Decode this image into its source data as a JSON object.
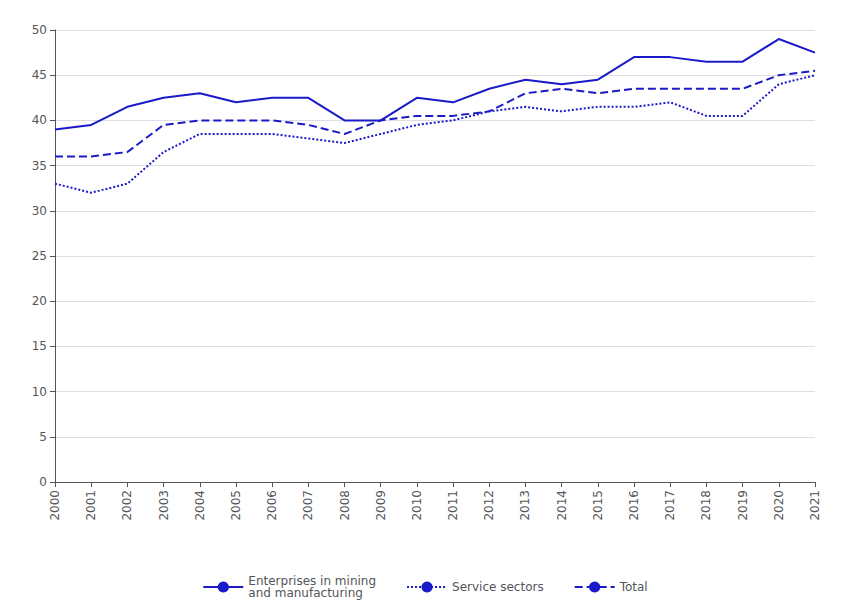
{
  "chart_data": {
    "type": "line",
    "x": [
      2000,
      2001,
      2002,
      2003,
      2004,
      2005,
      2006,
      2007,
      2008,
      2009,
      2010,
      2011,
      2012,
      2013,
      2014,
      2015,
      2016,
      2017,
      2018,
      2019,
      2020,
      2021
    ],
    "xlim": [
      2000,
      2021
    ],
    "xticks": [
      2000,
      2001,
      2002,
      2003,
      2004,
      2005,
      2006,
      2007,
      2008,
      2009,
      2010,
      2011,
      2012,
      2013,
      2014,
      2015,
      2016,
      2017,
      2018,
      2019,
      2020,
      2021
    ],
    "ylim": [
      0,
      50
    ],
    "yticks": [
      0,
      5,
      10,
      15,
      20,
      25,
      30,
      35,
      40,
      45,
      50
    ],
    "grid": "y",
    "legend": "bottom",
    "series": [
      {
        "name": "Enterprises in mining\nand manufacturing",
        "color": "#1a1ac8",
        "line_style": "solid",
        "values": [
          39.0,
          39.5,
          41.5,
          42.5,
          43.0,
          42.0,
          42.5,
          42.5,
          40.0,
          40.0,
          42.5,
          42.0,
          43.5,
          44.5,
          44.0,
          44.5,
          47.0,
          47.0,
          46.5,
          46.5,
          49.0,
          47.5
        ]
      },
      {
        "name": "Service sectors",
        "color": "#1a1ac8",
        "line_style": "dotted",
        "values": [
          33.0,
          32.0,
          33.0,
          36.5,
          38.5,
          38.5,
          38.5,
          38.0,
          37.5,
          38.5,
          39.5,
          40.0,
          41.0,
          41.5,
          41.0,
          41.5,
          41.5,
          42.0,
          40.5,
          40.5,
          44.0,
          45.0
        ]
      },
      {
        "name": "Total",
        "color": "#1a1ac8",
        "line_style": "dashed",
        "values": [
          36.0,
          36.0,
          36.5,
          39.5,
          40.0,
          40.0,
          40.0,
          39.5,
          38.5,
          40.0,
          40.5,
          40.5,
          41.0,
          43.0,
          43.5,
          43.0,
          43.5,
          43.5,
          43.5,
          43.5,
          45.0,
          45.5
        ]
      }
    ]
  }
}
